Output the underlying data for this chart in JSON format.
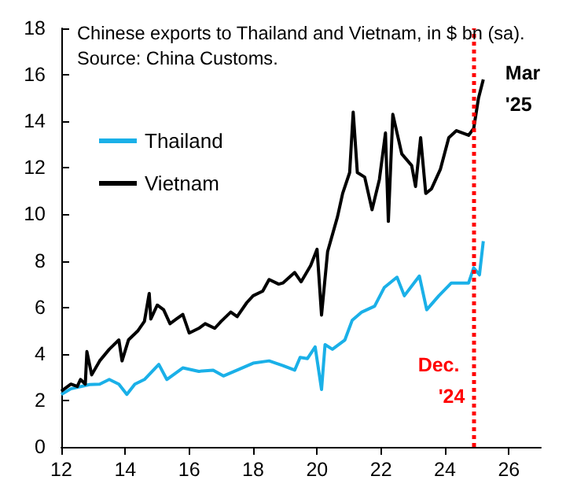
{
  "chart_data": {
    "type": "line",
    "title": "Chinese exports to Thailand and Vietnam, in $ bn (sa).",
    "subtitle": "Source: China Customs.",
    "xlim": [
      12,
      27
    ],
    "xticks": [
      12,
      14,
      16,
      18,
      20,
      22,
      24,
      26
    ],
    "ylim": [
      0,
      18
    ],
    "yticks": [
      0,
      2,
      4,
      6,
      8,
      10,
      12,
      14,
      16,
      18
    ],
    "grid": false,
    "legend": "top left",
    "marker": "none",
    "line_style": "solid",
    "ref_lines": [
      {
        "axis": "x",
        "value": 24.92,
        "label": "Dec. '24",
        "color": "#ff0000",
        "line_style": "dotted"
      }
    ],
    "annotations": [
      {
        "text": "Mar '25",
        "x": 25.2,
        "y": 15.8
      }
    ],
    "series": [
      {
        "name": "Thailand",
        "color": "#1ab0e8",
        "x": [
          12.0,
          12.3,
          12.88,
          13.2,
          13.5,
          13.8,
          14.05,
          14.3,
          14.6,
          15.05,
          15.3,
          15.8,
          16.3,
          16.75,
          17.07,
          17.5,
          18.0,
          18.5,
          18.93,
          19.3,
          19.47,
          19.7,
          19.94,
          20.14,
          20.25,
          20.48,
          20.87,
          21.1,
          21.4,
          21.8,
          22.1,
          22.5,
          22.73,
          23.2,
          23.43,
          23.81,
          24.2,
          24.74,
          24.9,
          25.08,
          25.2
        ],
        "values": [
          2.26,
          2.5,
          2.68,
          2.7,
          2.9,
          2.7,
          2.26,
          2.7,
          2.9,
          3.55,
          2.9,
          3.4,
          3.25,
          3.3,
          3.05,
          3.3,
          3.6,
          3.7,
          3.5,
          3.3,
          3.85,
          3.8,
          4.3,
          2.47,
          4.4,
          4.2,
          4.6,
          5.45,
          5.8,
          6.05,
          6.85,
          7.3,
          6.5,
          7.35,
          5.9,
          6.5,
          7.05,
          7.05,
          7.7,
          7.4,
          8.85
        ]
      },
      {
        "name": "Vietnam",
        "color": "#000000",
        "x": [
          12.0,
          12.3,
          12.5,
          12.6,
          12.75,
          12.8,
          12.95,
          13.2,
          13.5,
          13.8,
          13.9,
          14.1,
          14.4,
          14.6,
          14.75,
          14.8,
          15.0,
          15.2,
          15.4,
          15.6,
          15.8,
          16.0,
          16.3,
          16.5,
          16.8,
          17.0,
          17.3,
          17.5,
          17.8,
          18.0,
          18.3,
          18.5,
          18.8,
          18.93,
          19.3,
          19.5,
          19.8,
          20.0,
          20.14,
          20.33,
          20.64,
          20.8,
          21.02,
          21.13,
          21.26,
          21.49,
          21.72,
          21.95,
          22.14,
          22.23,
          22.37,
          22.65,
          22.96,
          23.08,
          23.24,
          23.4,
          23.58,
          23.86,
          24.12,
          24.36,
          24.74,
          24.9,
          25.05,
          25.2
        ],
        "values": [
          2.4,
          2.7,
          2.6,
          2.9,
          2.7,
          4.1,
          3.1,
          3.7,
          4.2,
          4.6,
          3.7,
          4.6,
          5.0,
          5.4,
          6.6,
          5.5,
          6.1,
          5.9,
          5.3,
          5.5,
          5.7,
          4.9,
          5.1,
          5.3,
          5.1,
          5.4,
          5.8,
          5.6,
          6.2,
          6.5,
          6.7,
          7.2,
          7.0,
          7.05,
          7.5,
          7.1,
          7.8,
          8.5,
          5.67,
          8.4,
          9.9,
          10.9,
          11.8,
          14.4,
          11.8,
          11.6,
          10.2,
          11.5,
          13.5,
          9.7,
          14.3,
          12.6,
          12.1,
          11.2,
          13.3,
          10.9,
          11.1,
          11.95,
          13.3,
          13.6,
          13.4,
          13.7,
          15.0,
          15.8
        ]
      }
    ]
  }
}
